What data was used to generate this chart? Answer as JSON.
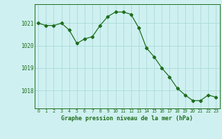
{
  "x": [
    0,
    1,
    2,
    3,
    4,
    5,
    6,
    7,
    8,
    9,
    10,
    11,
    12,
    13,
    14,
    15,
    16,
    17,
    18,
    19,
    20,
    21,
    22,
    23
  ],
  "y": [
    1021.0,
    1020.9,
    1020.9,
    1021.0,
    1020.7,
    1020.1,
    1020.3,
    1020.4,
    1020.9,
    1021.3,
    1021.5,
    1021.5,
    1021.4,
    1020.8,
    1019.9,
    1019.5,
    1019.0,
    1018.6,
    1018.1,
    1017.8,
    1017.55,
    1017.55,
    1017.8,
    1017.7
  ],
  "line_color": "#1e6e1e",
  "marker": "D",
  "marker_size": 2.2,
  "bg_color": "#cff0f0",
  "grid_color": "#aadada",
  "xlabel": "Graphe pression niveau de la mer (hPa)",
  "xlabel_color": "#1e6e1e",
  "tick_color": "#1e6e1e",
  "ylim": [
    1017.2,
    1021.85
  ],
  "xlim": [
    -0.5,
    23.5
  ],
  "yticks": [
    1018,
    1019,
    1020,
    1021
  ],
  "xticks": [
    0,
    1,
    2,
    3,
    4,
    5,
    6,
    7,
    8,
    9,
    10,
    11,
    12,
    13,
    14,
    15,
    16,
    17,
    18,
    19,
    20,
    21,
    22,
    23
  ]
}
